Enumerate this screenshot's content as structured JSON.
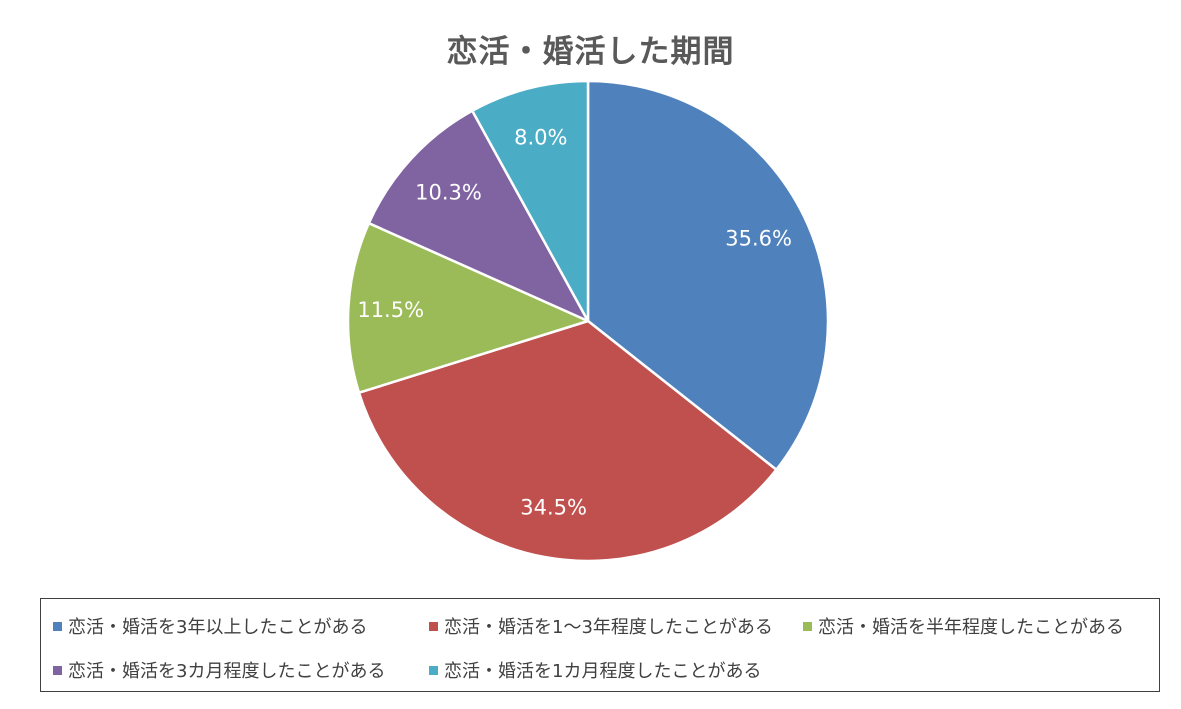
{
  "chart_data": {
    "type": "pie",
    "title": "恋活・婚活した期間",
    "start_angle_deg": 0,
    "direction": "clockwise",
    "slices": [
      {
        "label": "恋活・婚活を3年以上したことがある",
        "value": 35.6,
        "value_label": "35.6%",
        "color": "#4f81bd"
      },
      {
        "label": "恋活・婚活を1～3年程度したことがある",
        "value": 34.5,
        "value_label": "34.5%",
        "color": "#c0504d"
      },
      {
        "label": "恋活・婚活を半年程度したことがある",
        "value": 11.5,
        "value_label": "11.5%",
        "color": "#9bbb59"
      },
      {
        "label": "恋活・婚活を3カ月程度したことがある",
        "value": 10.3,
        "value_label": "10.3%",
        "color": "#8064a2"
      },
      {
        "label": "恋活・婚活を1カ月程度したことがある",
        "value": 8.0,
        "value_label": "8.0%",
        "color": "#4bacc6"
      }
    ],
    "legend_placement": "bottom",
    "data_label_color": "#ffffff"
  }
}
